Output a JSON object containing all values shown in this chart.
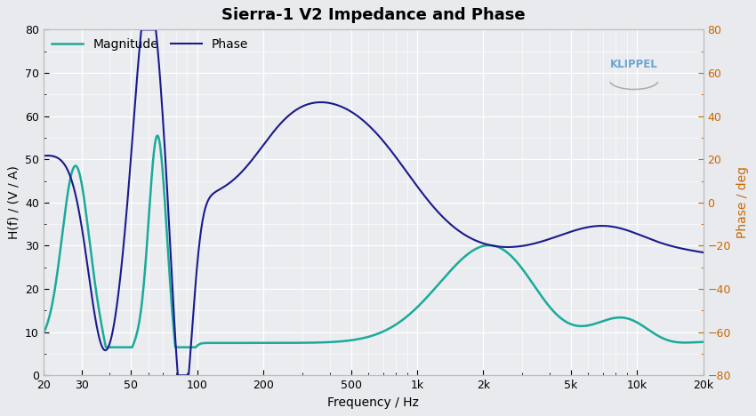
{
  "title": "Sierra-1 V2 Impedance and Phase",
  "xlabel": "Frequency / Hz",
  "ylabel_left": "H(f) / (V / A)",
  "ylabel_right": "Phase / deg",
  "bg_color": "#e8eaed",
  "plot_bg_color": "#eaecef",
  "magnitude_color": "#1aaa9a",
  "phase_color": "#1a1a8c",
  "ylim_left": [
    0,
    80
  ],
  "ylim_right": [
    -80,
    80
  ],
  "yticks_left": [
    0,
    10,
    20,
    30,
    40,
    50,
    60,
    70,
    80
  ],
  "yticks_right": [
    -80,
    -60,
    -40,
    -20,
    0,
    20,
    40,
    60,
    80
  ],
  "xmin": 20,
  "xmax": 20000,
  "xtick_positions": [
    20,
    30,
    50,
    100,
    200,
    500,
    1000,
    2000,
    5000,
    10000,
    20000
  ],
  "xtick_labels": [
    "20",
    "30",
    "50",
    "100",
    "200",
    "500",
    "1k",
    "2k",
    "5k",
    "10k",
    "20k"
  ],
  "grid_color": "#ffffff",
  "title_fontsize": 13,
  "axis_fontsize": 10,
  "tick_fontsize": 9,
  "legend_magnitude": "Magnitude",
  "legend_phase": "Phase",
  "klippel_color": "#5599cc",
  "right_label_color": "#cc6600"
}
